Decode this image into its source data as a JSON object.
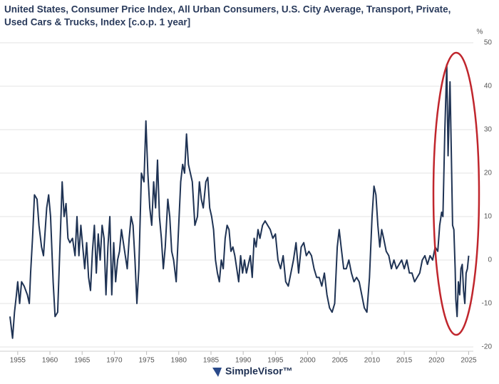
{
  "chart_data": {
    "type": "line",
    "title_lines": [
      "United States, Consumer Price Index, All Urban Consumers, U.S. City Average, Transport, Private,",
      "Used Cars & Trucks, Index [c.o.p. 1 year]"
    ],
    "y_unit": "%",
    "brand": "SimpleVisor™",
    "xlim": [
      1953.8,
      2025.5
    ],
    "xticks": [
      1955,
      1960,
      1965,
      1970,
      1975,
      1980,
      1985,
      1990,
      1995,
      2000,
      2005,
      2010,
      2015,
      2020,
      2025
    ],
    "ylim": [
      -20,
      50
    ],
    "yticks": [
      -20,
      -10,
      0,
      10,
      20,
      30,
      40,
      50
    ],
    "grid": true,
    "series": [
      {
        "color": "#1f3354",
        "x": [
          1953.8,
          1954.2,
          1954.5,
          1954.8,
          1955.0,
          1955.3,
          1955.6,
          1956.0,
          1956.5,
          1956.8,
          1957.0,
          1957.3,
          1957.6,
          1958.0,
          1958.3,
          1958.7,
          1959.0,
          1959.5,
          1959.8,
          1960.1,
          1960.5,
          1960.8,
          1961.2,
          1961.6,
          1961.9,
          1962.2,
          1962.5,
          1962.8,
          1963.1,
          1963.5,
          1963.9,
          1964.2,
          1964.5,
          1964.8,
          1965.1,
          1965.4,
          1965.7,
          1966.0,
          1966.3,
          1966.6,
          1966.9,
          1967.2,
          1967.5,
          1967.8,
          1968.1,
          1968.4,
          1968.7,
          1969.0,
          1969.3,
          1969.6,
          1969.9,
          1970.2,
          1970.5,
          1970.8,
          1971.1,
          1971.4,
          1971.7,
          1972.0,
          1972.3,
          1972.6,
          1972.9,
          1973.2,
          1973.5,
          1973.8,
          1974.2,
          1974.6,
          1974.9,
          1975.2,
          1975.5,
          1975.8,
          1976.1,
          1976.4,
          1976.7,
          1977.0,
          1977.3,
          1977.6,
          1977.9,
          1978.3,
          1978.6,
          1978.9,
          1979.2,
          1979.6,
          1979.9,
          1980.3,
          1980.6,
          1980.9,
          1981.2,
          1981.5,
          1981.8,
          1982.1,
          1982.5,
          1982.9,
          1983.2,
          1983.5,
          1983.8,
          1984.2,
          1984.5,
          1984.8,
          1985.1,
          1985.4,
          1985.7,
          1986.0,
          1986.3,
          1986.6,
          1986.9,
          1987.2,
          1987.5,
          1987.8,
          1988.1,
          1988.4,
          1988.7,
          1989.0,
          1989.3,
          1989.6,
          1989.9,
          1990.2,
          1990.5,
          1990.8,
          1991.1,
          1991.4,
          1991.7,
          1992.0,
          1992.3,
          1992.6,
          1993.0,
          1993.4,
          1993.8,
          1994.2,
          1994.6,
          1995.0,
          1995.4,
          1995.8,
          1996.2,
          1996.6,
          1997.0,
          1997.4,
          1997.8,
          1998.2,
          1998.6,
          1999.0,
          1999.4,
          1999.8,
          2000.2,
          2000.6,
          2001.0,
          2001.4,
          2001.8,
          2002.2,
          2002.6,
          2003.0,
          2003.4,
          2003.8,
          2004.2,
          2004.6,
          2004.9,
          2005.2,
          2005.6,
          2006.0,
          2006.4,
          2006.8,
          2007.2,
          2007.6,
          2008.0,
          2008.4,
          2008.8,
          2009.2,
          2009.6,
          2010.0,
          2010.3,
          2010.6,
          2010.9,
          2011.2,
          2011.5,
          2011.8,
          2012.2,
          2012.6,
          2013.0,
          2013.4,
          2013.8,
          2014.2,
          2014.6,
          2015.0,
          2015.4,
          2015.8,
          2016.2,
          2016.6,
          2017.0,
          2017.4,
          2017.8,
          2018.2,
          2018.6,
          2019.0,
          2019.4,
          2019.8,
          2020.2,
          2020.5,
          2020.8,
          2021.0,
          2021.3,
          2021.6,
          2021.8,
          2022.1,
          2022.3,
          2022.5,
          2022.7,
          2022.9,
          2023.0,
          2023.2,
          2023.4,
          2023.6,
          2023.8,
          2024.0,
          2024.2,
          2024.4,
          2024.6,
          2024.8,
          2025.0
        ],
        "values": [
          -13,
          -18,
          -12,
          -8,
          -5,
          -10,
          -5,
          -6,
          -8,
          -10,
          -3,
          5,
          15,
          14,
          8,
          3,
          1,
          12,
          15,
          10,
          -5,
          -13,
          -12,
          5,
          18,
          10,
          13,
          5,
          4,
          5,
          1,
          10,
          1,
          8,
          3,
          -2,
          4,
          -4,
          -7,
          2,
          8,
          -3,
          6,
          0,
          8,
          5,
          -8,
          3,
          10,
          -8,
          4,
          -5,
          0,
          2,
          7,
          4,
          1,
          -2,
          5,
          10,
          8,
          0,
          -10,
          -2,
          20,
          18,
          32,
          20,
          12,
          8,
          18,
          12,
          23,
          10,
          5,
          -2,
          3,
          14,
          10,
          2,
          0,
          -5,
          5,
          18,
          22,
          20,
          29,
          22,
          20,
          18,
          8,
          10,
          18,
          14,
          12,
          18,
          19,
          12,
          10,
          7,
          0,
          -3,
          -5,
          0,
          -2,
          5,
          8,
          7,
          2,
          3,
          1,
          -2,
          -5,
          1,
          -3,
          0,
          -3,
          -1,
          1,
          -4,
          5,
          3,
          7,
          5,
          8,
          9,
          8,
          7,
          5,
          6,
          0,
          -2,
          1,
          -5,
          -6,
          -3,
          0,
          4,
          -3,
          3,
          4,
          1,
          2,
          1,
          -2,
          -4,
          -4,
          -6,
          -3,
          -8,
          -11,
          -12,
          -10,
          3,
          7,
          3,
          -2,
          -2,
          0,
          -3,
          -5,
          -4,
          -5,
          -8,
          -11,
          -12,
          -4,
          10,
          17,
          15,
          8,
          3,
          7,
          5,
          2,
          1,
          -2,
          0,
          -2,
          -1,
          0,
          -2,
          0,
          -3,
          -3,
          -5,
          -4,
          -3,
          0,
          1,
          -1,
          1,
          0,
          3,
          2,
          8,
          11,
          10,
          30,
          45,
          24,
          41,
          25,
          8,
          7,
          -2,
          -9,
          -13,
          -5,
          -8,
          -2,
          -1,
          -7,
          -10,
          -3,
          -2,
          1
        ]
      }
    ]
  }
}
